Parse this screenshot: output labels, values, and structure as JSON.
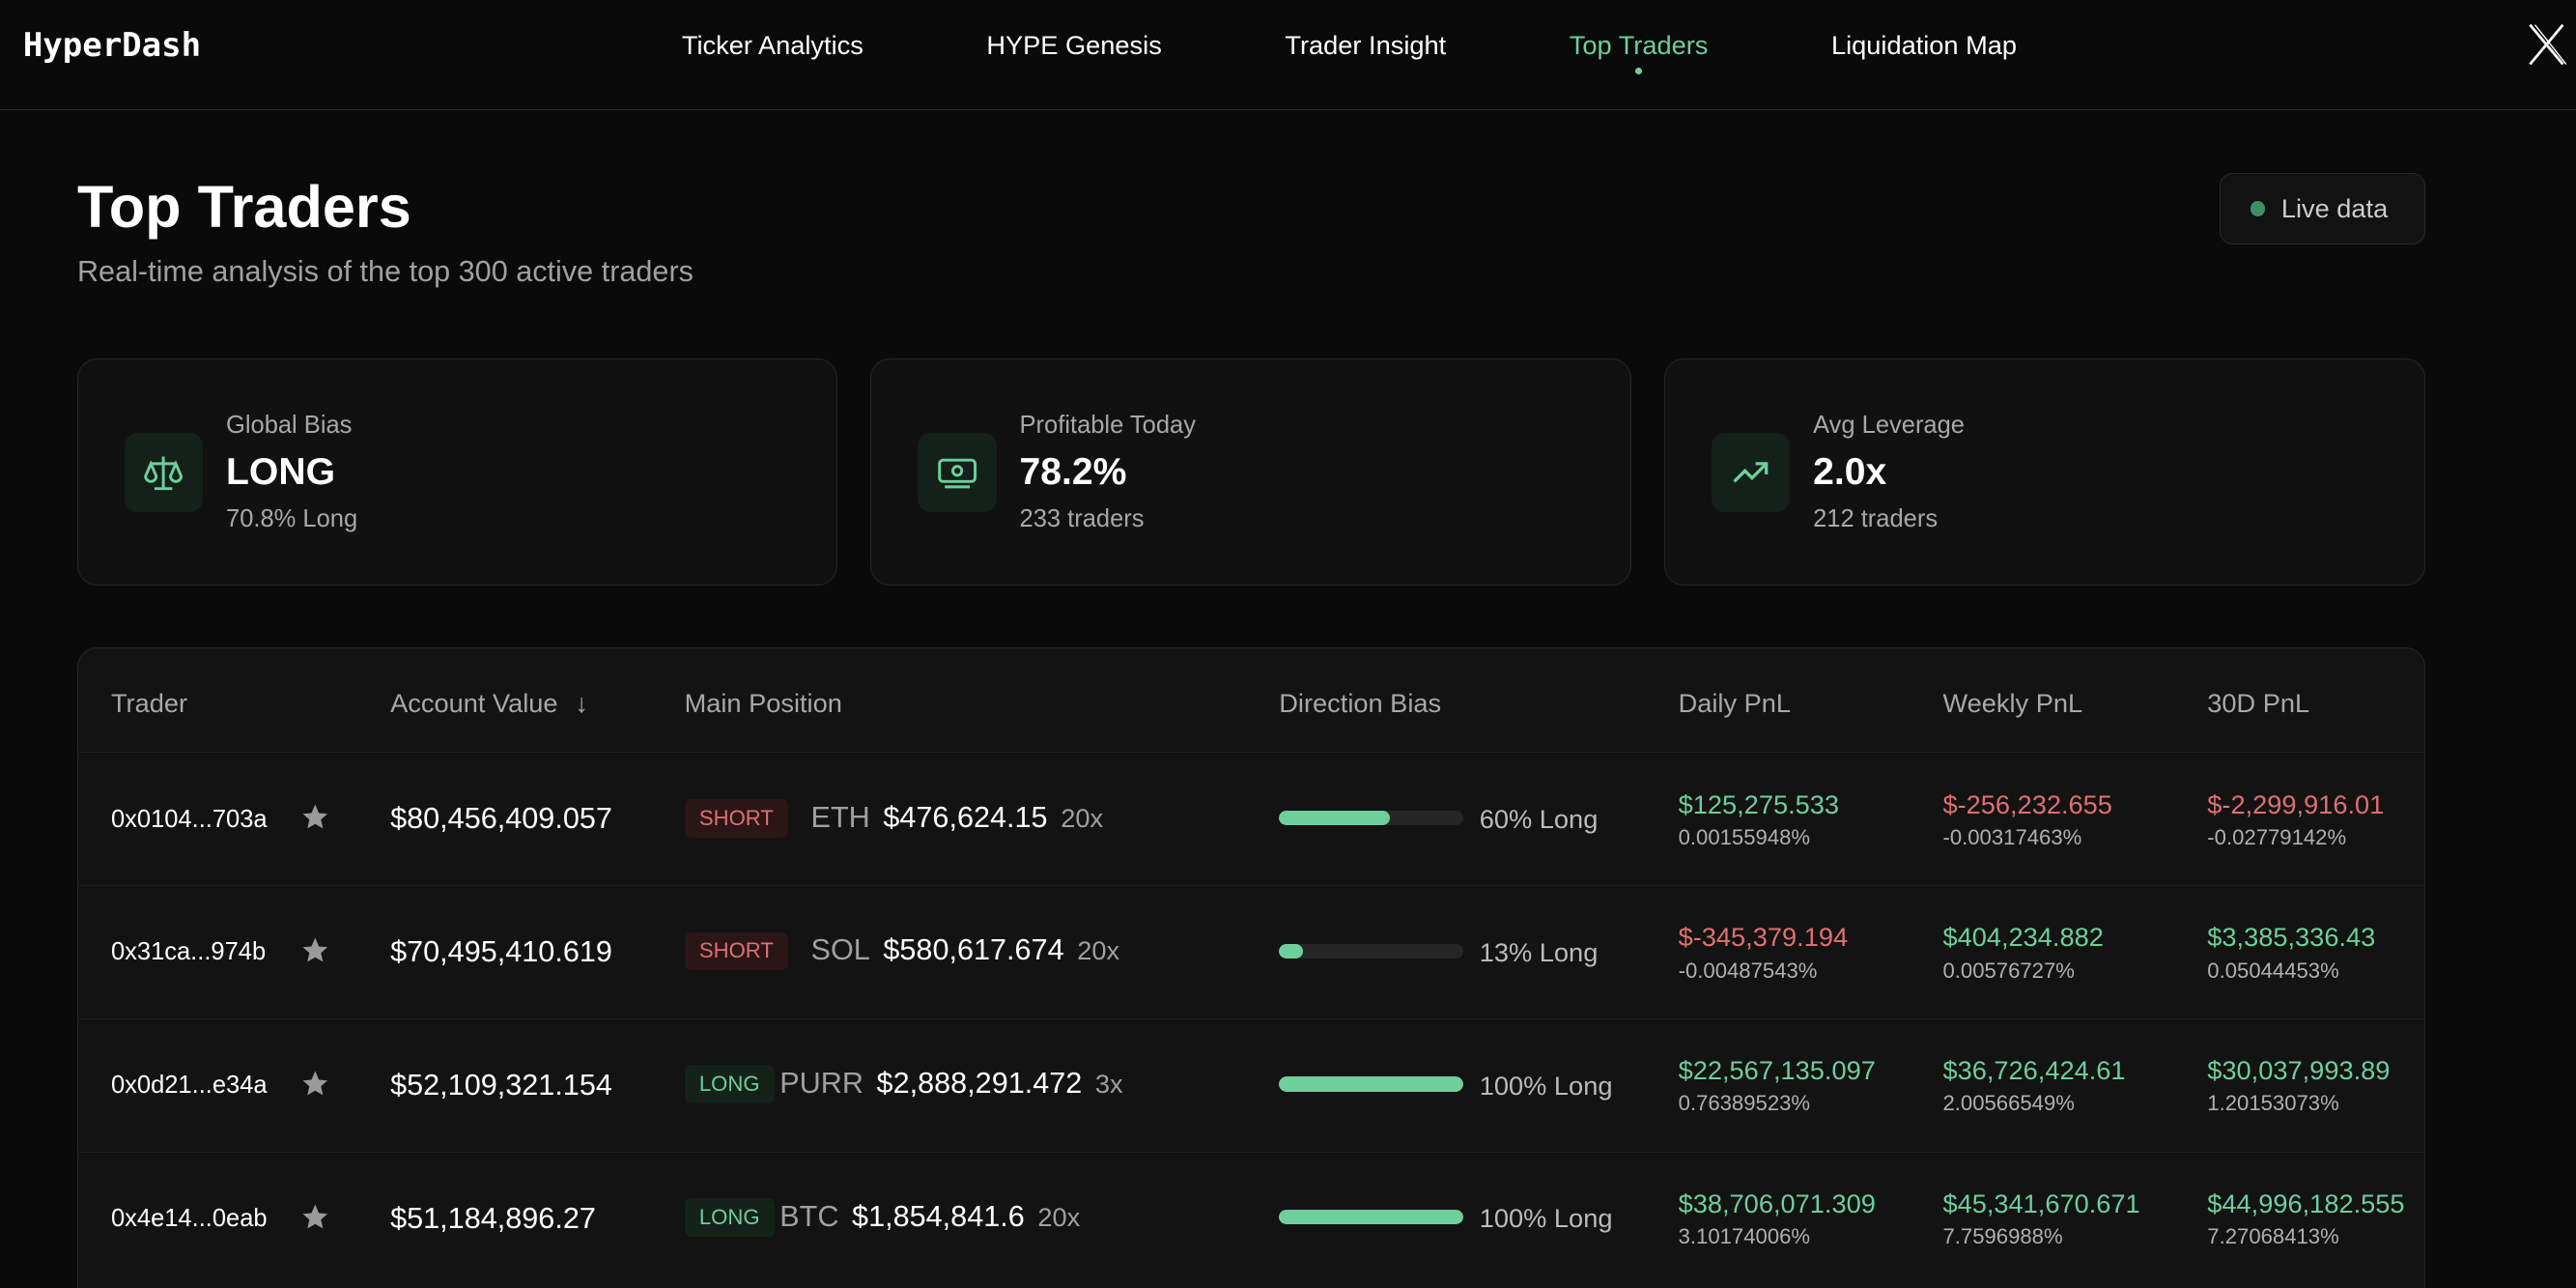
{
  "nav": {
    "logo": "HyperDash",
    "links": [
      "Ticker Analytics",
      "HYPE Genesis",
      "Trader Insight",
      "Top Traders",
      "Liquidation Map"
    ],
    "active": "Top Traders"
  },
  "header": {
    "title": "Top Traders",
    "subtitle": "Real-time analysis of the top 300 active traders",
    "live": "Live data"
  },
  "cards": [
    {
      "label": "Global Bias",
      "value": "LONG",
      "detail": "70.8% Long",
      "icon": "scale-icon"
    },
    {
      "label": "Profitable Today",
      "value": "78.2%",
      "detail": "233 traders",
      "icon": "banknote-icon"
    },
    {
      "label": "Avg Leverage",
      "value": "2.0x",
      "detail": "212 traders",
      "icon": "trending-up-icon"
    }
  ],
  "colors": {
    "accent": "#6ecf9c",
    "negative": "#e07070",
    "background": "#0a0a0a"
  },
  "table": {
    "headers": [
      "Trader",
      "Account Value",
      "Main Position",
      "Direction Bias",
      "Daily PnL",
      "Weekly PnL",
      "30D PnL"
    ],
    "sort": "Account Value descending",
    "rows": [
      {
        "trader": "0x0104...703a",
        "account": "$80,456,409.057",
        "side": "SHORT",
        "ticker": "ETH",
        "size": "$476,624.15",
        "lev": "20x",
        "bias": 60,
        "bias_label": "60% Long",
        "daily": "$125,275.533",
        "daily_pct": "0.00155948%",
        "weekly": "$-256,232.655",
        "weekly_pct": "-0.00317463%",
        "m30": "$-2,299,916.01",
        "m30_pct": "-0.02779142%"
      },
      {
        "trader": "0x31ca...974b",
        "account": "$70,495,410.619",
        "side": "SHORT",
        "ticker": "SOL",
        "size": "$580,617.674",
        "lev": "20x",
        "bias": 13,
        "bias_label": "13% Long",
        "daily": "$-345,379.194",
        "daily_pct": "-0.00487543%",
        "weekly": "$404,234.882",
        "weekly_pct": "0.00576727%",
        "m30": "$3,385,336.43",
        "m30_pct": "0.05044453%"
      },
      {
        "trader": "0x0d21...e34a",
        "account": "$52,109,321.154",
        "side": "LONG",
        "ticker": "PURR",
        "size": "$2,888,291.472",
        "lev": "3x",
        "bias": 100,
        "bias_label": "100% Long",
        "daily": "$22,567,135.097",
        "daily_pct": "0.76389523%",
        "weekly": "$36,726,424.61",
        "weekly_pct": "2.00566549%",
        "m30": "$30,037,993.89",
        "m30_pct": "1.20153073%"
      },
      {
        "trader": "0x4e14...0eab",
        "account": "$51,184,896.27",
        "side": "LONG",
        "ticker": "BTC",
        "size": "$1,854,841.6",
        "lev": "20x",
        "bias": 100,
        "bias_label": "100% Long",
        "daily": "$38,706,071.309",
        "daily_pct": "3.10174006%",
        "weekly": "$45,341,670.671",
        "weekly_pct": "7.7596988%",
        "m30": "$44,996,182.555",
        "m30_pct": "7.27068413%"
      }
    ]
  }
}
